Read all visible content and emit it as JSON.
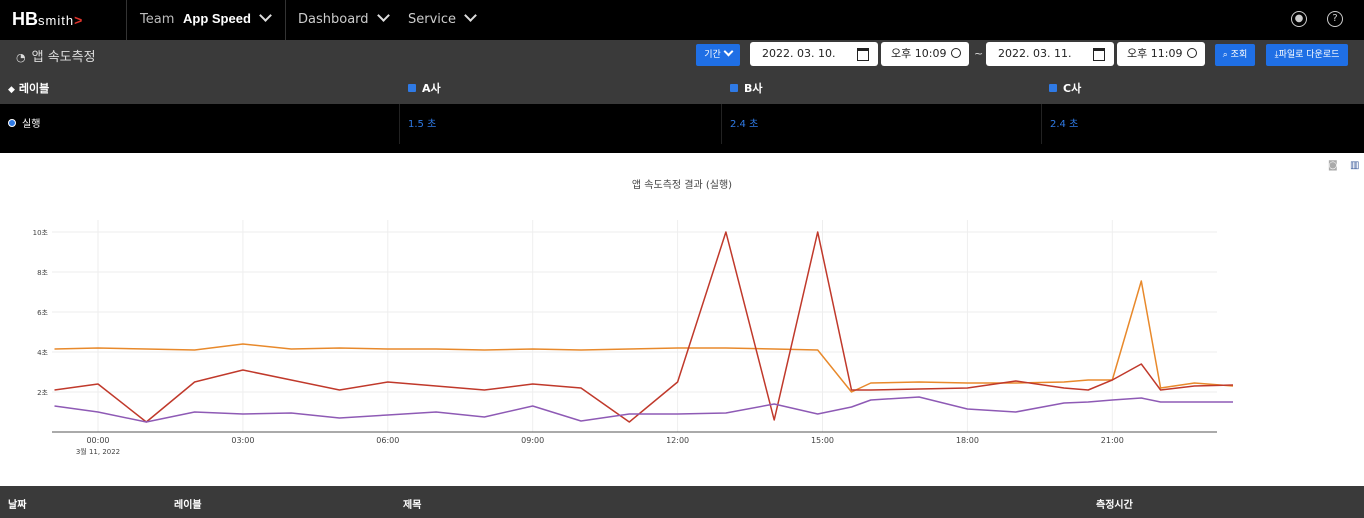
{
  "header": {
    "logo_hb": "HB",
    "logo_smith": "smith",
    "logo_arrow": ">",
    "team_label": "Team",
    "app_name": "App Speed",
    "nav": [
      "Dashboard",
      "Service"
    ],
    "icons": [
      "user-icon",
      "help-icon"
    ]
  },
  "toolbar": {
    "page_title": "앱 속도측정",
    "period_button": "기간",
    "start_date": "2022. 03. 10.",
    "start_time": "오후 10:09",
    "separator": "~",
    "end_date": "2022. 03. 11.",
    "end_time": "오후 11:09",
    "search_button": "조회",
    "download_button": "파일로 다운로드"
  },
  "table": {
    "headers": [
      "레이블",
      "A사",
      "B사",
      "C사"
    ],
    "rows": [
      {
        "label": "실행",
        "values": [
          "1.5 초",
          "2.4 초",
          "2.4 초"
        ]
      }
    ]
  },
  "chart_data": {
    "type": "line",
    "title": "앱 속도측정 결과 (실행)",
    "y_ticks": [
      "2초",
      "4초",
      "6초",
      "8초",
      "10초"
    ],
    "x_ticks": [
      "00:00",
      "03:00",
      "06:00",
      "09:00",
      "12:00",
      "15:00",
      "18:00",
      "21:00"
    ],
    "x_subtitle": "3월 11, 2022",
    "ylim": [
      0,
      11
    ],
    "grid": true,
    "series": [
      {
        "color": "#e8892b",
        "x": [
          -0.9,
          0,
          1,
          2,
          3,
          4,
          5,
          6,
          7,
          8,
          9,
          10,
          11,
          12,
          13,
          14,
          14.9,
          15.6,
          16,
          17,
          18,
          19,
          20,
          20.5,
          21,
          21.6,
          22,
          22.7,
          23.5
        ],
        "y": [
          4.15,
          4.2,
          4.15,
          4.1,
          4.4,
          4.15,
          4.2,
          4.15,
          4.15,
          4.1,
          4.15,
          4.1,
          4.15,
          4.2,
          4.2,
          4.15,
          4.1,
          2.0,
          2.45,
          2.5,
          2.45,
          2.45,
          2.5,
          2.6,
          2.6,
          7.55,
          2.2,
          2.45,
          2.3
        ]
      },
      {
        "color": "#c0392b",
        "x": [
          -0.9,
          0,
          1,
          2,
          3,
          4,
          5,
          6,
          7,
          8,
          9,
          10,
          11,
          12,
          13,
          14,
          14.9,
          15.6,
          16,
          17,
          18,
          19,
          20,
          20.5,
          21,
          21.6,
          22,
          22.7,
          23.5
        ],
        "y": [
          2.1,
          2.4,
          0.5,
          2.5,
          3.1,
          2.6,
          2.1,
          2.5,
          2.3,
          2.1,
          2.4,
          2.2,
          0.5,
          2.5,
          10.0,
          0.6,
          10.0,
          2.1,
          2.1,
          2.15,
          2.2,
          2.55,
          2.2,
          2.1,
          2.6,
          3.4,
          2.1,
          2.3,
          2.35
        ]
      },
      {
        "color": "#8e5ab5",
        "x": [
          -0.9,
          0,
          1,
          2,
          3,
          4,
          5,
          6,
          7,
          8,
          9,
          10,
          11,
          12,
          13,
          14,
          14.9,
          15.6,
          16,
          17,
          18,
          19,
          20,
          20.5,
          21,
          21.6,
          22,
          22.7,
          23.5
        ],
        "y": [
          1.3,
          1.0,
          0.5,
          1.0,
          0.9,
          0.95,
          0.7,
          0.85,
          1.0,
          0.75,
          1.3,
          0.55,
          0.9,
          0.9,
          0.95,
          1.4,
          0.9,
          1.25,
          1.6,
          1.75,
          1.15,
          1.0,
          1.45,
          1.5,
          1.6,
          1.7,
          1.5,
          1.5,
          1.5
        ]
      }
    ]
  },
  "bottom_table": {
    "headers": [
      "날짜",
      "레이블",
      "제목",
      "측정시간"
    ]
  }
}
